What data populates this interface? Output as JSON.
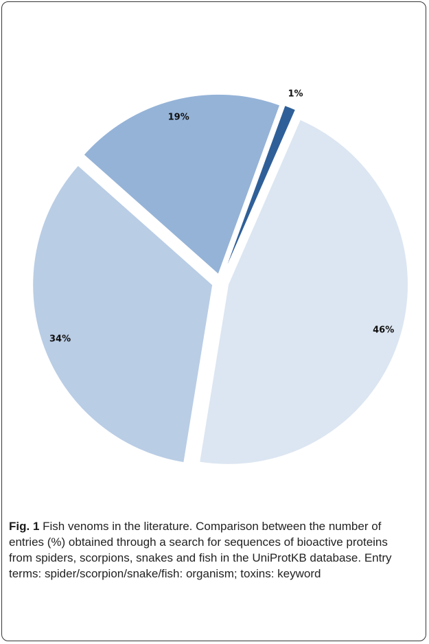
{
  "chart_data": {
    "type": "pie",
    "values": [
      1,
      46,
      34,
      19
    ],
    "value_labels": [
      "1%",
      "46%",
      "34%",
      "19%"
    ],
    "colors": [
      "#2f5f98",
      "#dce6f2",
      "#b9cde5",
      "#95b3d7"
    ]
  },
  "caption": {
    "label": "Fig. 1",
    "text": "Fish venoms in the literature. Comparison between the number of entries (%) obtained through a search for sequences of bioactive proteins from spiders, scorpions, snakes and fish in the UniProtKB database. Entry terms: spider/scorpion/snake/fish: organism; toxins: keyword"
  }
}
